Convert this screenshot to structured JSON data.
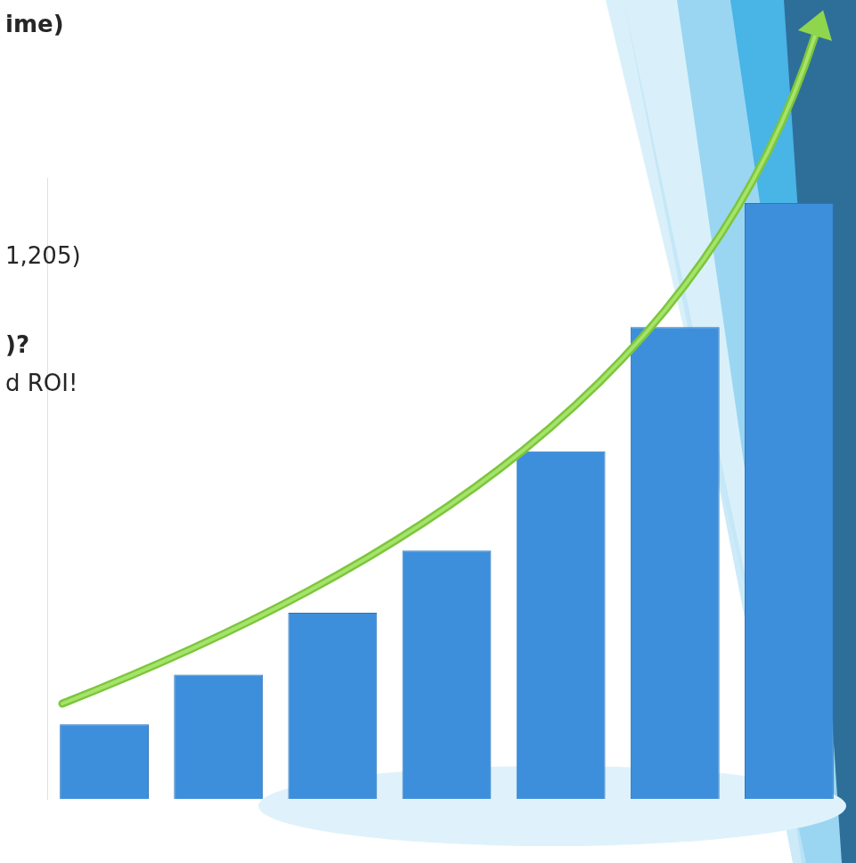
{
  "chart_data": {
    "type": "bar",
    "annotations": [
      "ime)",
      "1,205)",
      ")?",
      "d ROI!"
    ],
    "categories": [
      null,
      null,
      null,
      null,
      null,
      null,
      null
    ],
    "values": [
      6,
      10,
      15,
      20,
      28,
      38,
      48
    ],
    "color": "#3d8fdc",
    "ylim": [
      0,
      50
    ],
    "grid": false,
    "tick_labels": false
  }
}
